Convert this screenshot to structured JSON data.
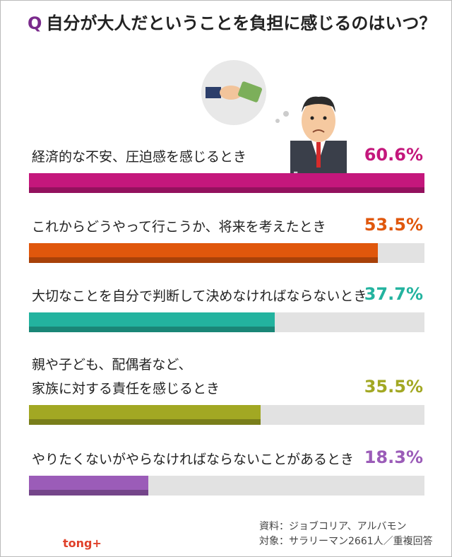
{
  "chart_data": {
    "type": "hbar",
    "title_marker": "Q",
    "title": "自分が大人だということを負担に感じるのはいつ？",
    "categories": [
      "経済的な不安、圧迫感を感じるとき",
      "これからどうやって行こうか、将来を考えたとき",
      "大切なことを自分で判断して決めなければならないとき",
      "親や子ども、配偶者など、\n家族に対する責任を感じるとき",
      "やりたくないがやらなければならないことがあるとき"
    ],
    "values": [
      60.6,
      53.5,
      37.7,
      35.5,
      18.3
    ],
    "value_labels": [
      "60.6%",
      "53.5%",
      "37.7%",
      "35.5%",
      "18.3%"
    ],
    "colors": [
      "#c4177c",
      "#e0570c",
      "#23b39f",
      "#a2a823",
      "#9b5cb8"
    ],
    "xlim": [
      0,
      60.6
    ],
    "source": [
      "資料：ジョブコリア、アルバモン",
      "対象：サラリーマン2661人／重複回答"
    ],
    "logo": "tong+"
  }
}
